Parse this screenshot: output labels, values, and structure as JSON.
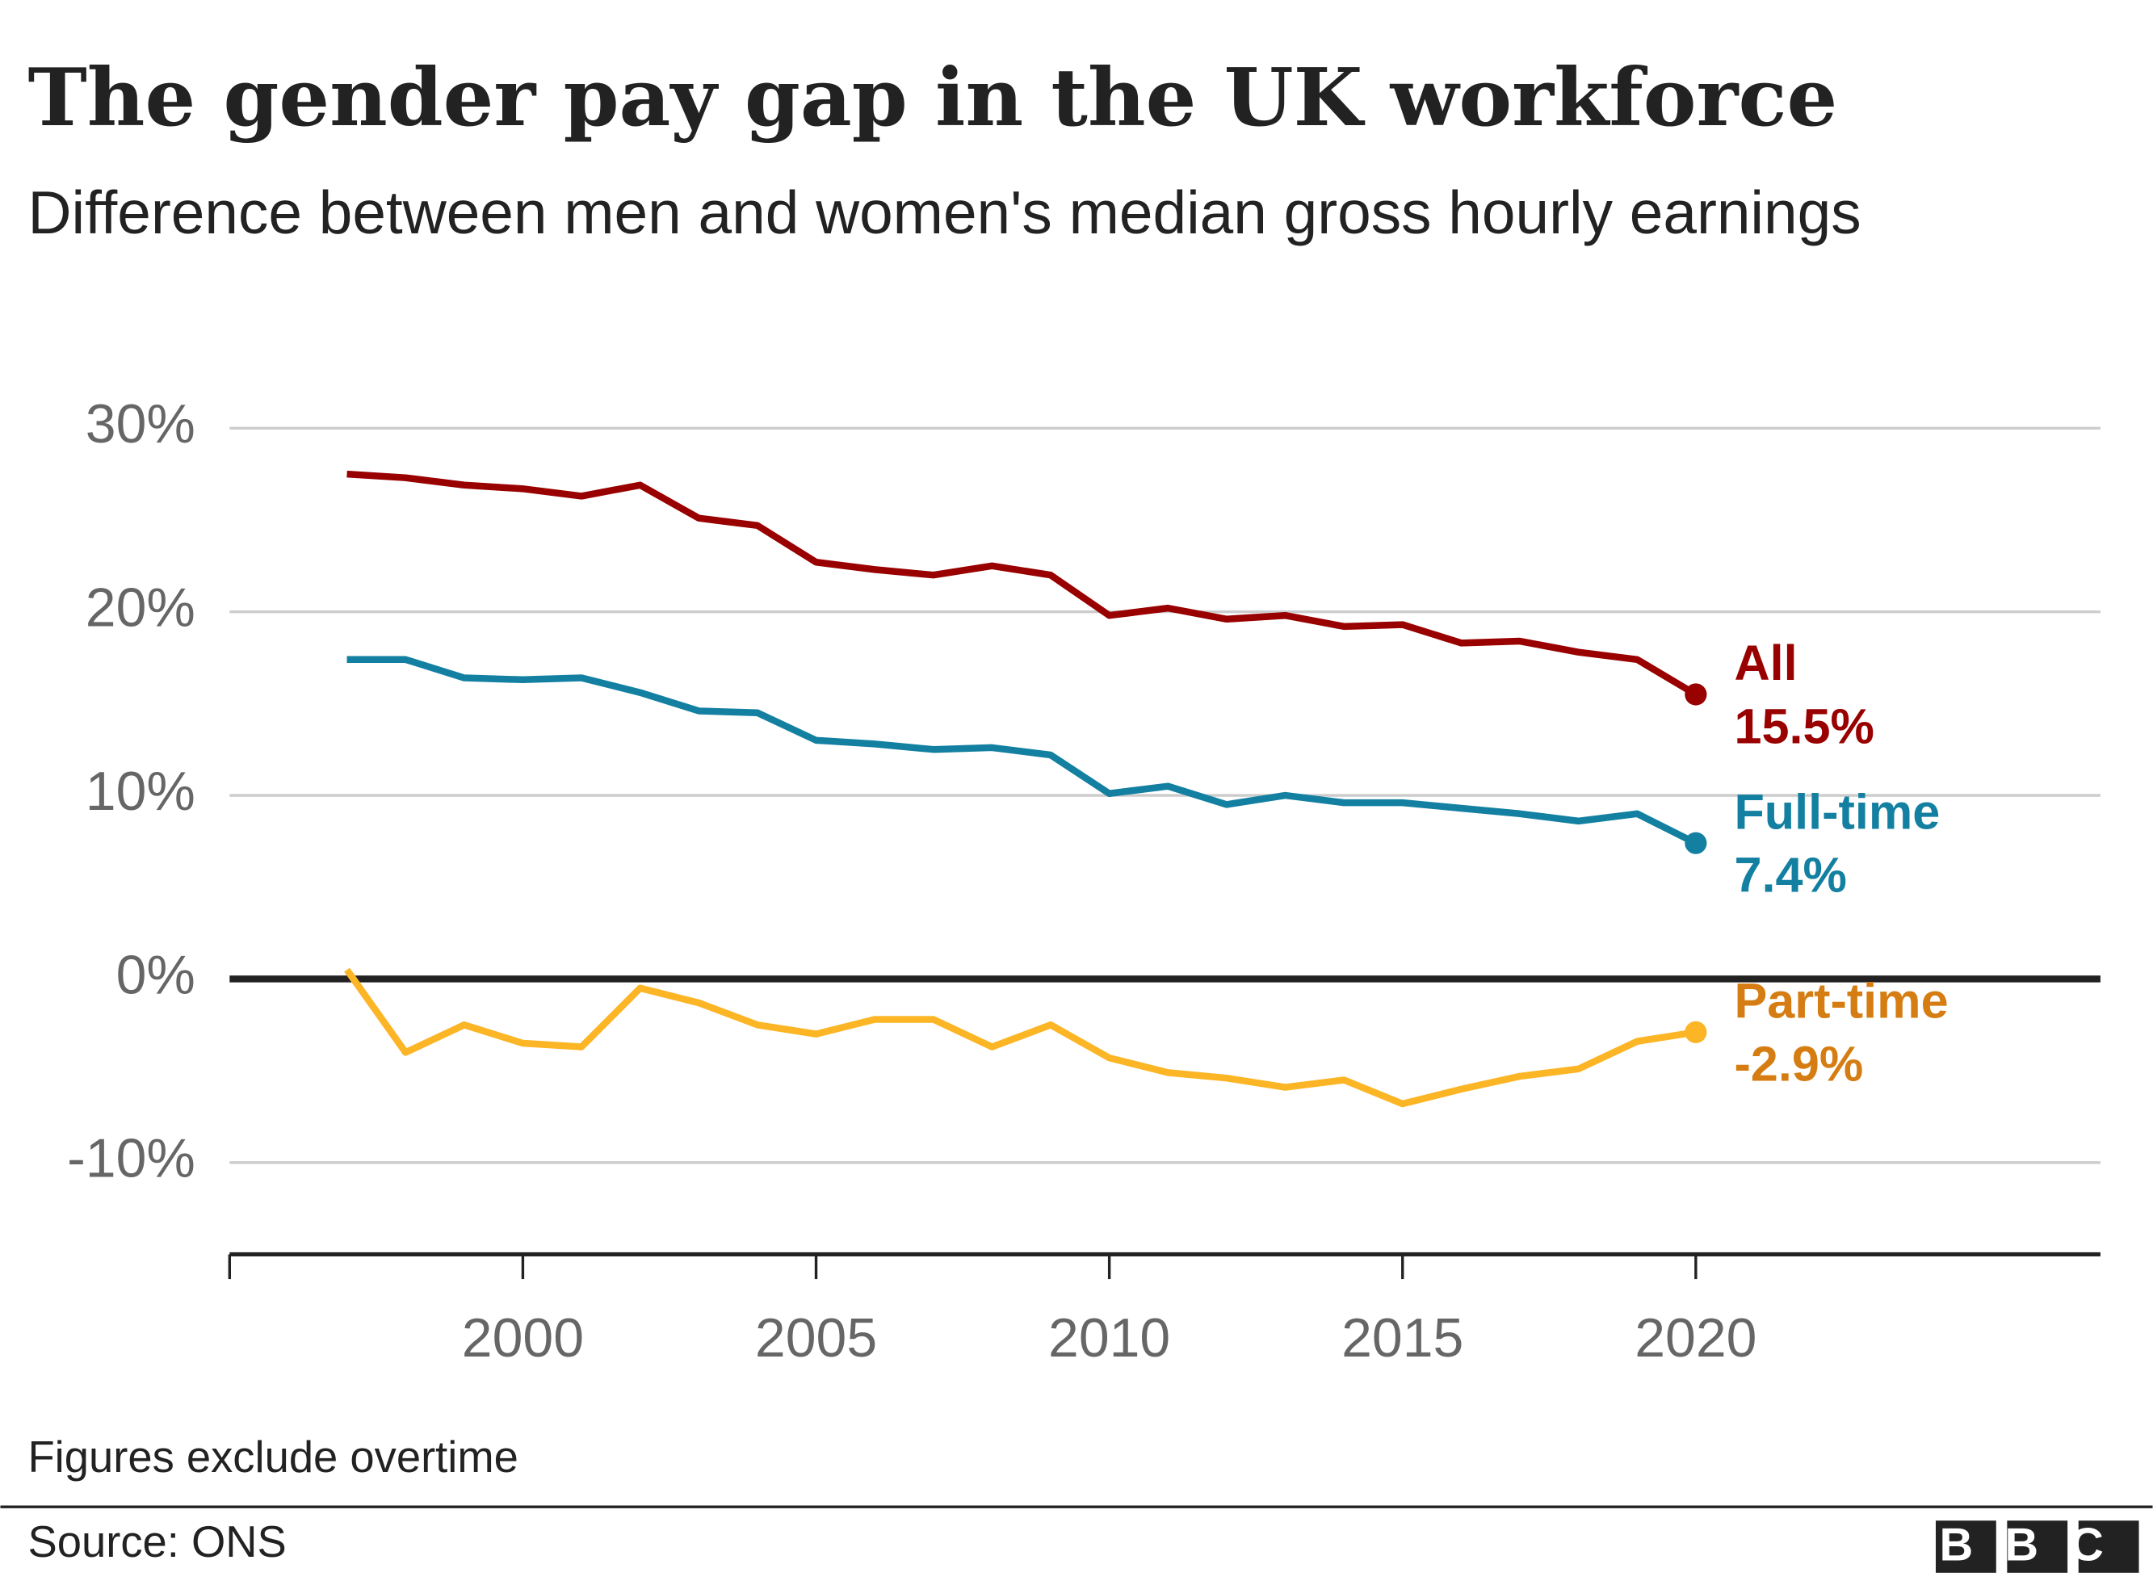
{
  "chart_data": {
    "type": "line",
    "title": "The gender pay gap in the UK workforce",
    "subtitle": "Difference between men and women's median gross hourly earnings",
    "x": [
      1997,
      1998,
      1999,
      2000,
      2001,
      2002,
      2003,
      2004,
      2005,
      2006,
      2007,
      2008,
      2009,
      2010,
      2011,
      2012,
      2013,
      2014,
      2015,
      2016,
      2017,
      2018,
      2019,
      2020
    ],
    "series": [
      {
        "name": "All",
        "color": "#990000",
        "label_color": "#990000",
        "values": [
          27.5,
          27.3,
          26.9,
          26.7,
          26.3,
          26.9,
          25.1,
          24.7,
          22.7,
          22.3,
          22.0,
          22.5,
          22.0,
          19.8,
          20.2,
          19.6,
          19.8,
          19.2,
          19.3,
          18.3,
          18.4,
          17.8,
          17.4,
          15.5
        ],
        "value_labels": [
          null,
          null,
          null,
          null,
          null,
          null,
          null,
          null,
          null,
          null,
          null,
          null,
          null,
          null,
          null,
          null,
          null,
          null,
          null,
          null,
          null,
          null,
          null,
          "15.5%"
        ]
      },
      {
        "name": "Full-time",
        "color": "#1380a1",
        "label_color": "#1380a1",
        "values": [
          17.4,
          17.4,
          16.4,
          16.3,
          16.4,
          15.6,
          14.6,
          14.5,
          13.0,
          12.8,
          12.5,
          12.6,
          12.2,
          10.1,
          10.5,
          9.5,
          10.0,
          9.6,
          9.6,
          9.3,
          9.0,
          8.6,
          9.0,
          7.4
        ],
        "value_labels": [
          null,
          null,
          null,
          null,
          null,
          null,
          null,
          null,
          null,
          null,
          null,
          null,
          null,
          null,
          null,
          null,
          null,
          null,
          null,
          null,
          null,
          null,
          null,
          "7.4%"
        ]
      },
      {
        "name": "Part-time",
        "color": "#fbb525",
        "label_color": "#d57d12",
        "values": [
          0.5,
          -4.0,
          -2.5,
          -3.5,
          -3.7,
          -0.5,
          -1.3,
          -2.5,
          -3.0,
          -2.2,
          -2.2,
          -3.7,
          -2.5,
          -4.3,
          -5.1,
          -5.4,
          -5.9,
          -5.5,
          -6.8,
          -6.0,
          -5.3,
          -4.9,
          -3.4,
          -2.9
        ],
        "value_labels": [
          null,
          null,
          null,
          null,
          null,
          null,
          null,
          null,
          null,
          null,
          null,
          null,
          null,
          null,
          null,
          null,
          null,
          null,
          null,
          null,
          null,
          null,
          null,
          "-2.9%"
        ]
      }
    ],
    "xlim": [
      1995,
      2026.9
    ],
    "xticks": [
      2000,
      2005,
      2010,
      2015,
      2020
    ],
    "ylim": [
      -15,
      30
    ],
    "yticks": [
      {
        "value": -10,
        "label": "-10%"
      },
      {
        "value": 0,
        "label": "0%"
      },
      {
        "value": 10,
        "label": "10%"
      },
      {
        "value": 20,
        "label": "20%"
      },
      {
        "value": 30,
        "label": "30%"
      }
    ],
    "grid": true,
    "note": "Figures exclude overtime",
    "source": "Source: ONS",
    "logo": "BBC"
  }
}
